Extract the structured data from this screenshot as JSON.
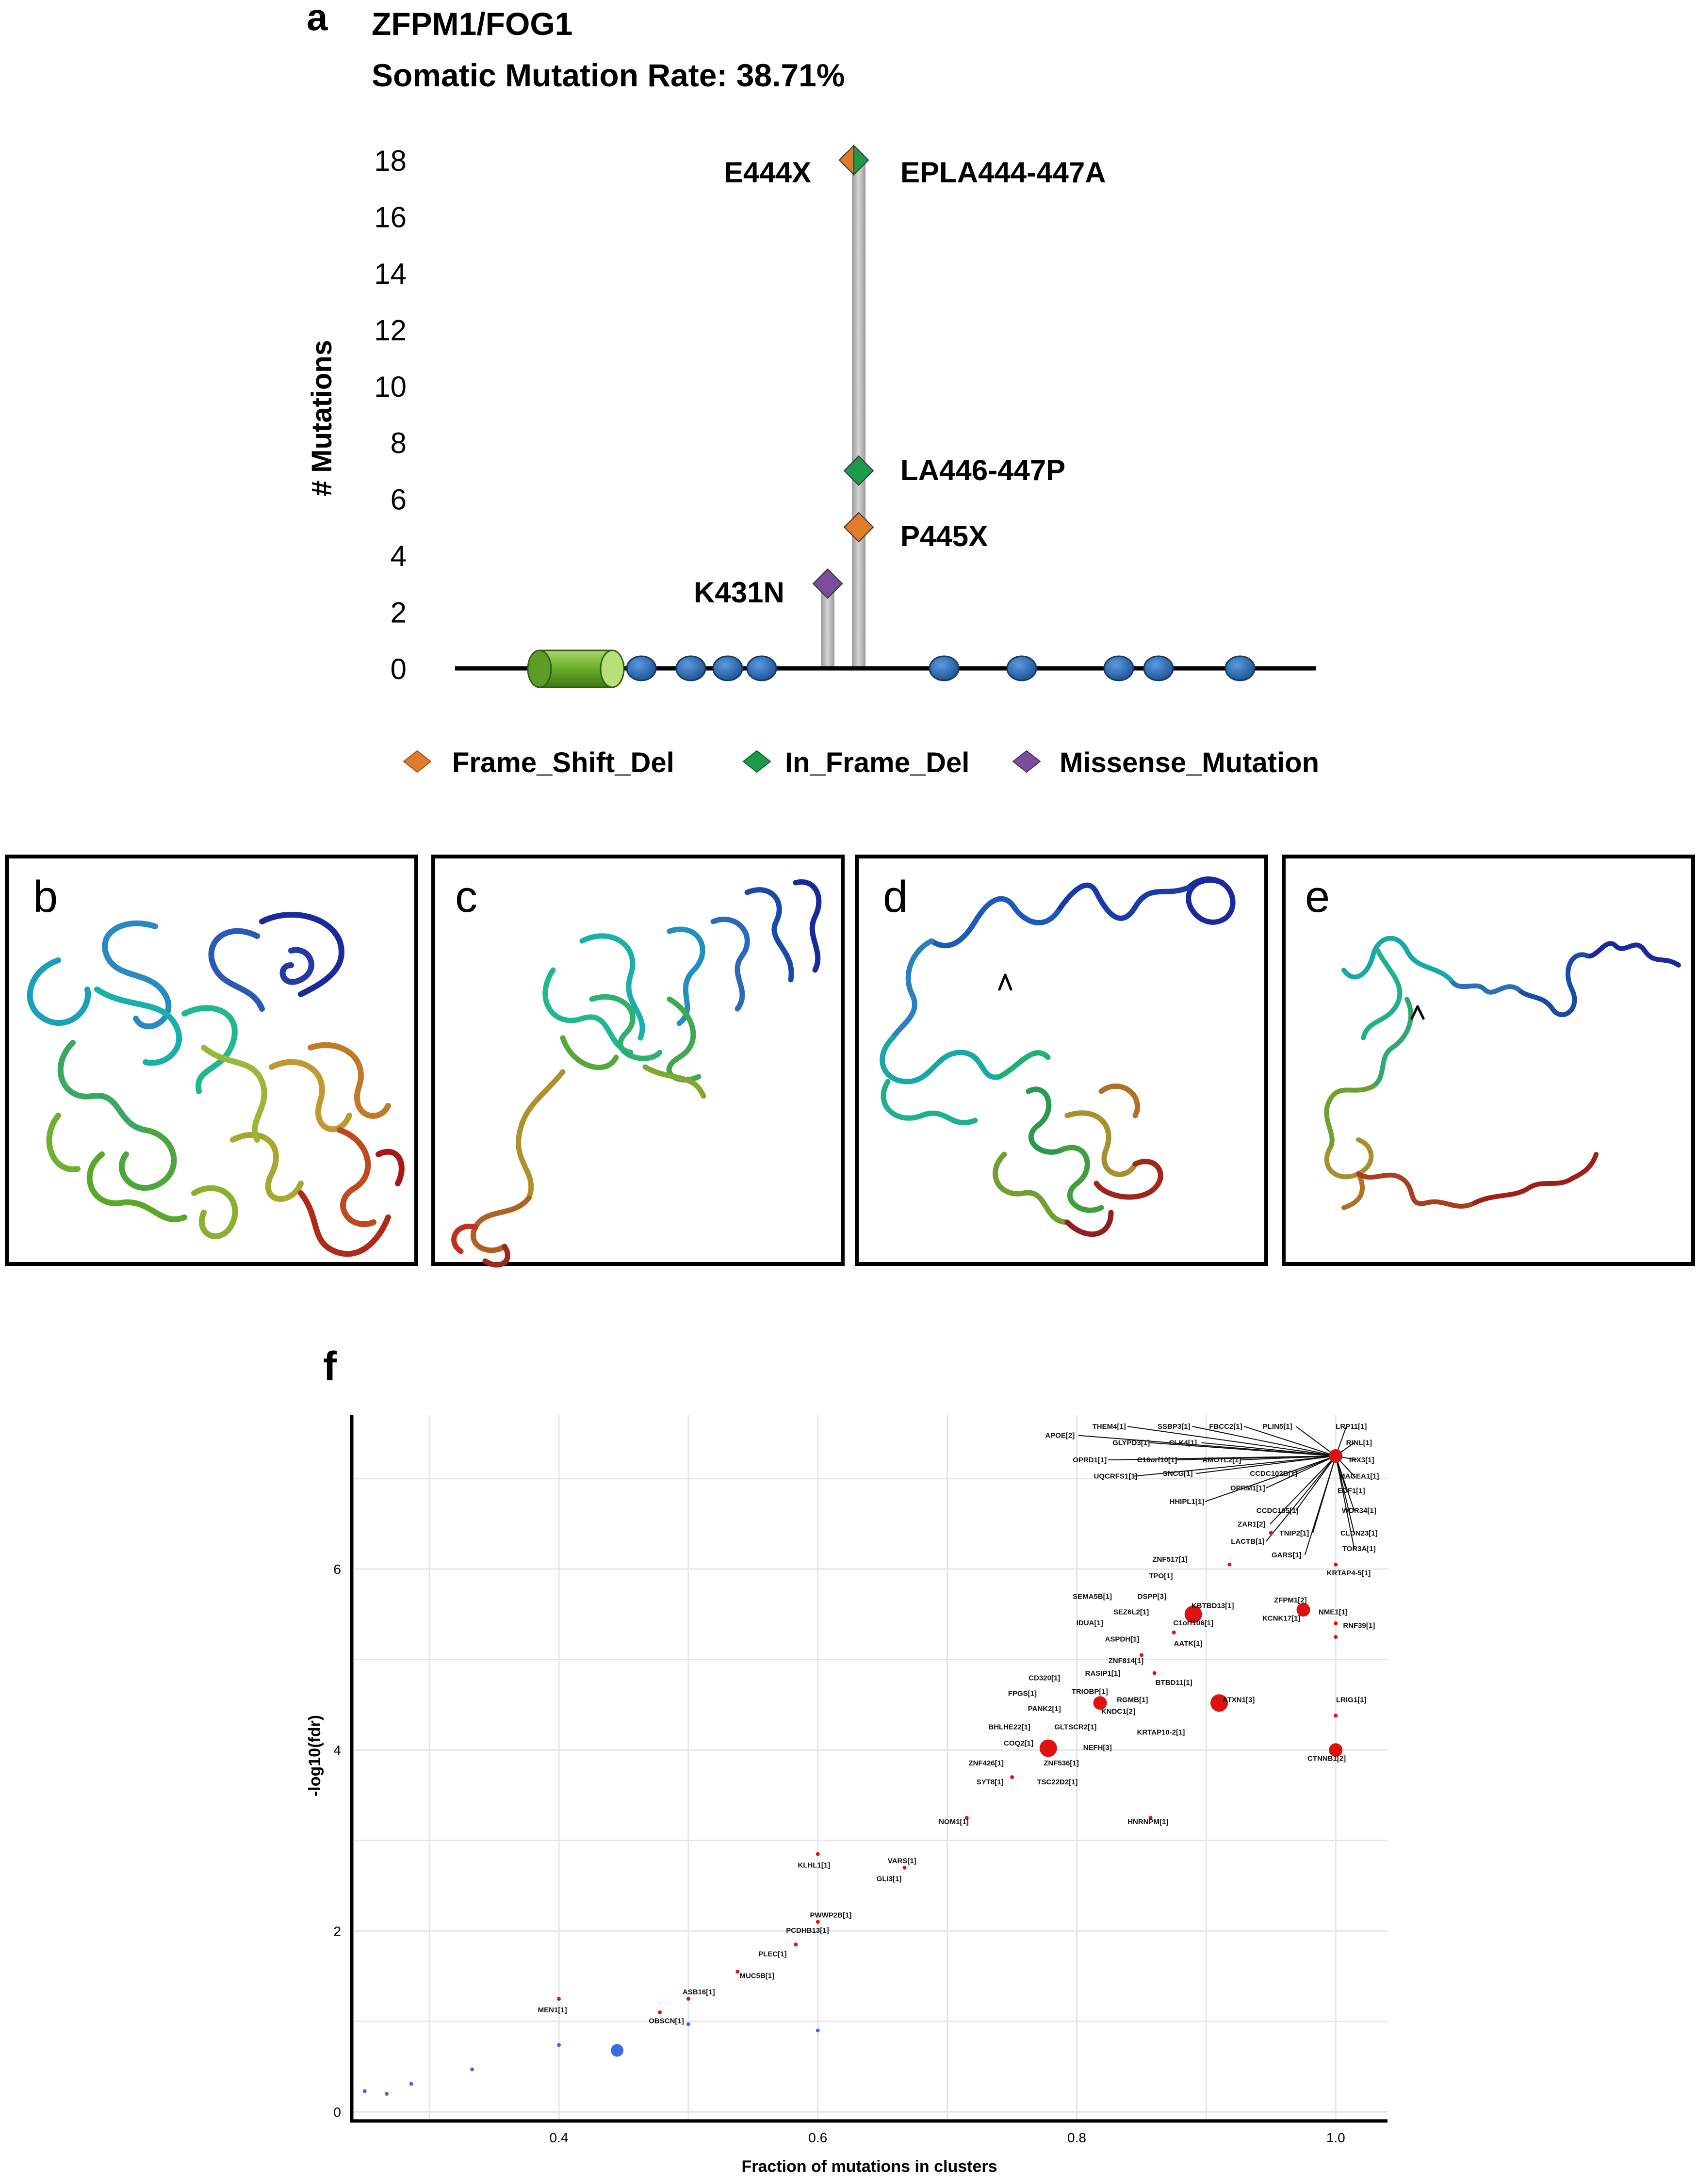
{
  "panel_a": {
    "letter": "a",
    "gene": "ZFPM1/FOG1",
    "rate_text": "Somatic Mutation Rate: 38.71%"
  },
  "structure_panels": {
    "b": "b",
    "c": "c",
    "d": "d",
    "e": "e"
  },
  "panel_f": {
    "letter": "f"
  },
  "colors": {
    "frame_shift": "#e07b2a",
    "in_frame": "#1a9a4a",
    "missense": "#7a4e9a",
    "domain_dot": "#2a6ab0",
    "sig": "#e01010",
    "nonsig": "#3a6ee0"
  },
  "chart_data": [
    {
      "type": "lollipop",
      "title": "ZFPM1/FOG1",
      "ylabel": "# Mutations",
      "ylim": [
        0,
        18
      ],
      "yticks": [
        0,
        2,
        4,
        6,
        8,
        10,
        12,
        14,
        16,
        18
      ],
      "legend": [
        "Frame_Shift_Del",
        "In_Frame_Del",
        "Missense_Mutation"
      ],
      "mutations": [
        {
          "label": "E444X",
          "type": "Frame_Shift_Del",
          "count": 18
        },
        {
          "label": "EPLA444-447A",
          "type": "In_Frame_Del",
          "count": 18
        },
        {
          "label": "LA446-447P",
          "type": "In_Frame_Del",
          "count": 7
        },
        {
          "label": "P445X",
          "type": "Frame_Shift_Del",
          "count": 5
        },
        {
          "label": "K431N",
          "type": "Missense_Mutation",
          "count": 3
        }
      ]
    },
    {
      "type": "scatter",
      "xlabel": "Fraction of mutations in clusters",
      "ylabel": "-log10(fdr)",
      "xticks": [
        "0.4",
        "0.6",
        "0.8",
        "1.0"
      ],
      "yticks": [
        "0",
        "2",
        "4",
        "6"
      ],
      "xlim": [
        0.24,
        1.04
      ],
      "ylim": [
        -0.1,
        7.7
      ],
      "labels": [
        {
          "t": "THEM4[1]",
          "x": 0.825,
          "y": 7.55
        },
        {
          "t": "SSBP3[1]",
          "x": 0.875,
          "y": 7.55
        },
        {
          "t": "FBCC2[1]",
          "x": 0.915,
          "y": 7.55
        },
        {
          "t": "PLIN5[1]",
          "x": 0.955,
          "y": 7.55
        },
        {
          "t": "LRP11[1]",
          "x": 1.012,
          "y": 7.55
        },
        {
          "t": "APOE[2]",
          "x": 0.787,
          "y": 7.45
        },
        {
          "t": "GLYPD3[1]",
          "x": 0.842,
          "y": 7.37
        },
        {
          "t": "CLK4[1]",
          "x": 0.882,
          "y": 7.37
        },
        {
          "t": "RINL[1]",
          "x": 1.018,
          "y": 7.37
        },
        {
          "t": "OPRD1[1]",
          "x": 0.81,
          "y": 7.18
        },
        {
          "t": "C16orf10[1]",
          "x": 0.862,
          "y": 7.18
        },
        {
          "t": "AMOTL2[1]",
          "x": 0.912,
          "y": 7.18
        },
        {
          "t": "IRX3[1]",
          "x": 1.02,
          "y": 7.18
        },
        {
          "t": "UQCRFS1[1]",
          "x": 0.83,
          "y": 7.0
        },
        {
          "t": "SNCG[1]",
          "x": 0.878,
          "y": 7.03
        },
        {
          "t": "CCDC102B[1]",
          "x": 0.952,
          "y": 7.03
        },
        {
          "t": "MAGEA1[1]",
          "x": 1.018,
          "y": 7.0
        },
        {
          "t": "OPRM1[1]",
          "x": 0.932,
          "y": 6.87
        },
        {
          "t": "EDF1[1]",
          "x": 1.012,
          "y": 6.84
        },
        {
          "t": "HHIPL1[1]",
          "x": 0.885,
          "y": 6.72
        },
        {
          "t": "CCDC105[1]",
          "x": 0.955,
          "y": 6.62
        },
        {
          "t": "WDR34[1]",
          "x": 1.018,
          "y": 6.62
        },
        {
          "t": "ZAR1[2]",
          "x": 0.935,
          "y": 6.47
        },
        {
          "t": "TNIP2[1]",
          "x": 0.968,
          "y": 6.37
        },
        {
          "t": "CLDN23[1]",
          "x": 1.018,
          "y": 6.37
        },
        {
          "t": "LACTB[1]",
          "x": 0.932,
          "y": 6.28
        },
        {
          "t": "GARS[1]",
          "x": 0.962,
          "y": 6.13
        },
        {
          "t": "TOR3A[1]",
          "x": 1.018,
          "y": 6.2
        },
        {
          "t": "ZNF517[1]",
          "x": 0.872,
          "y": 6.08
        },
        {
          "t": "KRTAP4-5[1]",
          "x": 1.01,
          "y": 5.93
        },
        {
          "t": "TPO[1]",
          "x": 0.865,
          "y": 5.9
        },
        {
          "t": "SEMA5B[1]",
          "x": 0.812,
          "y": 5.67
        },
        {
          "t": "DSPP[3]",
          "x": 0.858,
          "y": 5.67
        },
        {
          "t": "KBTBD13[1]",
          "x": 0.905,
          "y": 5.57
        },
        {
          "t": "ZFPM1[2]",
          "x": 0.965,
          "y": 5.63
        },
        {
          "t": "SEZ6L2[1]",
          "x": 0.842,
          "y": 5.5
        },
        {
          "t": "NME1[1]",
          "x": 0.998,
          "y": 5.5
        },
        {
          "t": "KCNK17[1]",
          "x": 0.958,
          "y": 5.43
        },
        {
          "t": "IDUA[1]",
          "x": 0.81,
          "y": 5.38
        },
        {
          "t": "C1orf106[1]",
          "x": 0.89,
          "y": 5.38
        },
        {
          "t": "RNF39[1]",
          "x": 1.018,
          "y": 5.35
        },
        {
          "t": "ASPDH[1]",
          "x": 0.835,
          "y": 5.2
        },
        {
          "t": "AATK[1]",
          "x": 0.886,
          "y": 5.15
        },
        {
          "t": "ZNF814[1]",
          "x": 0.838,
          "y": 4.96
        },
        {
          "t": "RASIP1[1]",
          "x": 0.82,
          "y": 4.82
        },
        {
          "t": "BTBD11[1]",
          "x": 0.875,
          "y": 4.72
        },
        {
          "t": "CD320[1]",
          "x": 0.775,
          "y": 4.77
        },
        {
          "t": "TRIOBP[1]",
          "x": 0.81,
          "y": 4.62
        },
        {
          "t": "FPGS[1]",
          "x": 0.758,
          "y": 4.6
        },
        {
          "t": "RGMB[1]",
          "x": 0.843,
          "y": 4.53
        },
        {
          "t": "ATXN1[3]",
          "x": 0.925,
          "y": 4.53
        },
        {
          "t": "LRIG1[1]",
          "x": 1.012,
          "y": 4.53
        },
        {
          "t": "PANK2[1]",
          "x": 0.775,
          "y": 4.43
        },
        {
          "t": "KNDC1[2]",
          "x": 0.832,
          "y": 4.4
        },
        {
          "t": "BHLHE22[1]",
          "x": 0.748,
          "y": 4.23
        },
        {
          "t": "GLTSCR2[1]",
          "x": 0.799,
          "y": 4.23
        },
        {
          "t": "KRTAP10-2[1]",
          "x": 0.865,
          "y": 4.17
        },
        {
          "t": "COQ2[1]",
          "x": 0.755,
          "y": 4.05
        },
        {
          "t": "NEFH[3]",
          "x": 0.816,
          "y": 4.0
        },
        {
          "t": "ZNF426[1]",
          "x": 0.73,
          "y": 3.83
        },
        {
          "t": "ZNF536[1]",
          "x": 0.788,
          "y": 3.83
        },
        {
          "t": "CTNNB1[2]",
          "x": 0.993,
          "y": 3.88
        },
        {
          "t": "SYT8[1]",
          "x": 0.733,
          "y": 3.62
        },
        {
          "t": "TSC22D2[1]",
          "x": 0.785,
          "y": 3.62
        },
        {
          "t": "NOM1[1]",
          "x": 0.705,
          "y": 3.18
        },
        {
          "t": "HNRNPM[1]",
          "x": 0.855,
          "y": 3.18
        },
        {
          "t": "VARS[1]",
          "x": 0.665,
          "y": 2.75
        },
        {
          "t": "KLHL1[1]",
          "x": 0.597,
          "y": 2.7
        },
        {
          "t": "GLI3[1]",
          "x": 0.655,
          "y": 2.55
        },
        {
          "t": "PWWP2B[1]",
          "x": 0.61,
          "y": 2.15
        },
        {
          "t": "PCDHB13[1]",
          "x": 0.592,
          "y": 1.98
        },
        {
          "t": "PLEC[1]",
          "x": 0.565,
          "y": 1.72
        },
        {
          "t": "MUC5B[1]",
          "x": 0.553,
          "y": 1.48
        },
        {
          "t": "ASB16[1]",
          "x": 0.508,
          "y": 1.3
        },
        {
          "t": "MEN1[1]",
          "x": 0.395,
          "y": 1.1
        },
        {
          "t": "OBSCN[1]",
          "x": 0.483,
          "y": 0.98
        }
      ],
      "points": [
        {
          "x": 1.0,
          "y": 7.25,
          "s": 14,
          "sig": true
        },
        {
          "x": 0.95,
          "y": 6.4,
          "s": 4,
          "sig": true
        },
        {
          "x": 0.918,
          "y": 6.05,
          "s": 4,
          "sig": true
        },
        {
          "x": 1.0,
          "y": 6.05,
          "s": 4,
          "sig": true
        },
        {
          "x": 0.89,
          "y": 5.5,
          "s": 18,
          "sig": true
        },
        {
          "x": 0.975,
          "y": 5.55,
          "s": 14,
          "sig": true
        },
        {
          "x": 1.0,
          "y": 5.4,
          "s": 4,
          "sig": true
        },
        {
          "x": 1.0,
          "y": 5.25,
          "s": 4,
          "sig": true
        },
        {
          "x": 0.875,
          "y": 5.3,
          "s": 4,
          "sig": true
        },
        {
          "x": 0.85,
          "y": 5.05,
          "s": 4,
          "sig": true
        },
        {
          "x": 0.86,
          "y": 4.85,
          "s": 4,
          "sig": true
        },
        {
          "x": 0.818,
          "y": 4.52,
          "s": 14,
          "sig": true
        },
        {
          "x": 0.91,
          "y": 4.52,
          "s": 18,
          "sig": true
        },
        {
          "x": 1.0,
          "y": 4.38,
          "s": 4,
          "sig": true
        },
        {
          "x": 0.778,
          "y": 4.02,
          "s": 18,
          "sig": true
        },
        {
          "x": 1.0,
          "y": 4.0,
          "s": 14,
          "sig": true
        },
        {
          "x": 0.75,
          "y": 3.7,
          "s": 4,
          "sig": true
        },
        {
          "x": 0.715,
          "y": 3.25,
          "s": 4,
          "sig": true
        },
        {
          "x": 0.857,
          "y": 3.25,
          "s": 4,
          "sig": true
        },
        {
          "x": 0.6,
          "y": 2.85,
          "s": 4,
          "sig": true
        },
        {
          "x": 0.667,
          "y": 2.7,
          "s": 4,
          "sig": true
        },
        {
          "x": 0.6,
          "y": 2.1,
          "s": 4,
          "sig": true
        },
        {
          "x": 0.583,
          "y": 1.85,
          "s": 4,
          "sig": true
        },
        {
          "x": 0.538,
          "y": 1.55,
          "s": 4,
          "sig": true
        },
        {
          "x": 0.5,
          "y": 1.25,
          "s": 4,
          "sig": true
        },
        {
          "x": 0.4,
          "y": 1.25,
          "s": 4,
          "sig": true
        },
        {
          "x": 0.478,
          "y": 1.1,
          "s": 4,
          "sig": true
        },
        {
          "x": 0.6,
          "y": 0.9,
          "s": 4,
          "sig": false
        },
        {
          "x": 0.5,
          "y": 0.97,
          "s": 4,
          "sig": false
        },
        {
          "x": 0.445,
          "y": 0.68,
          "s": 13,
          "sig": false
        },
        {
          "x": 0.4,
          "y": 0.74,
          "s": 4,
          "sig": false
        },
        {
          "x": 0.333,
          "y": 0.47,
          "s": 4,
          "sig": false
        },
        {
          "x": 0.286,
          "y": 0.31,
          "s": 4,
          "sig": false
        },
        {
          "x": 0.267,
          "y": 0.2,
          "s": 4,
          "sig": false
        },
        {
          "x": 0.25,
          "y": 0.23,
          "s": 4,
          "sig": false
        }
      ]
    }
  ]
}
